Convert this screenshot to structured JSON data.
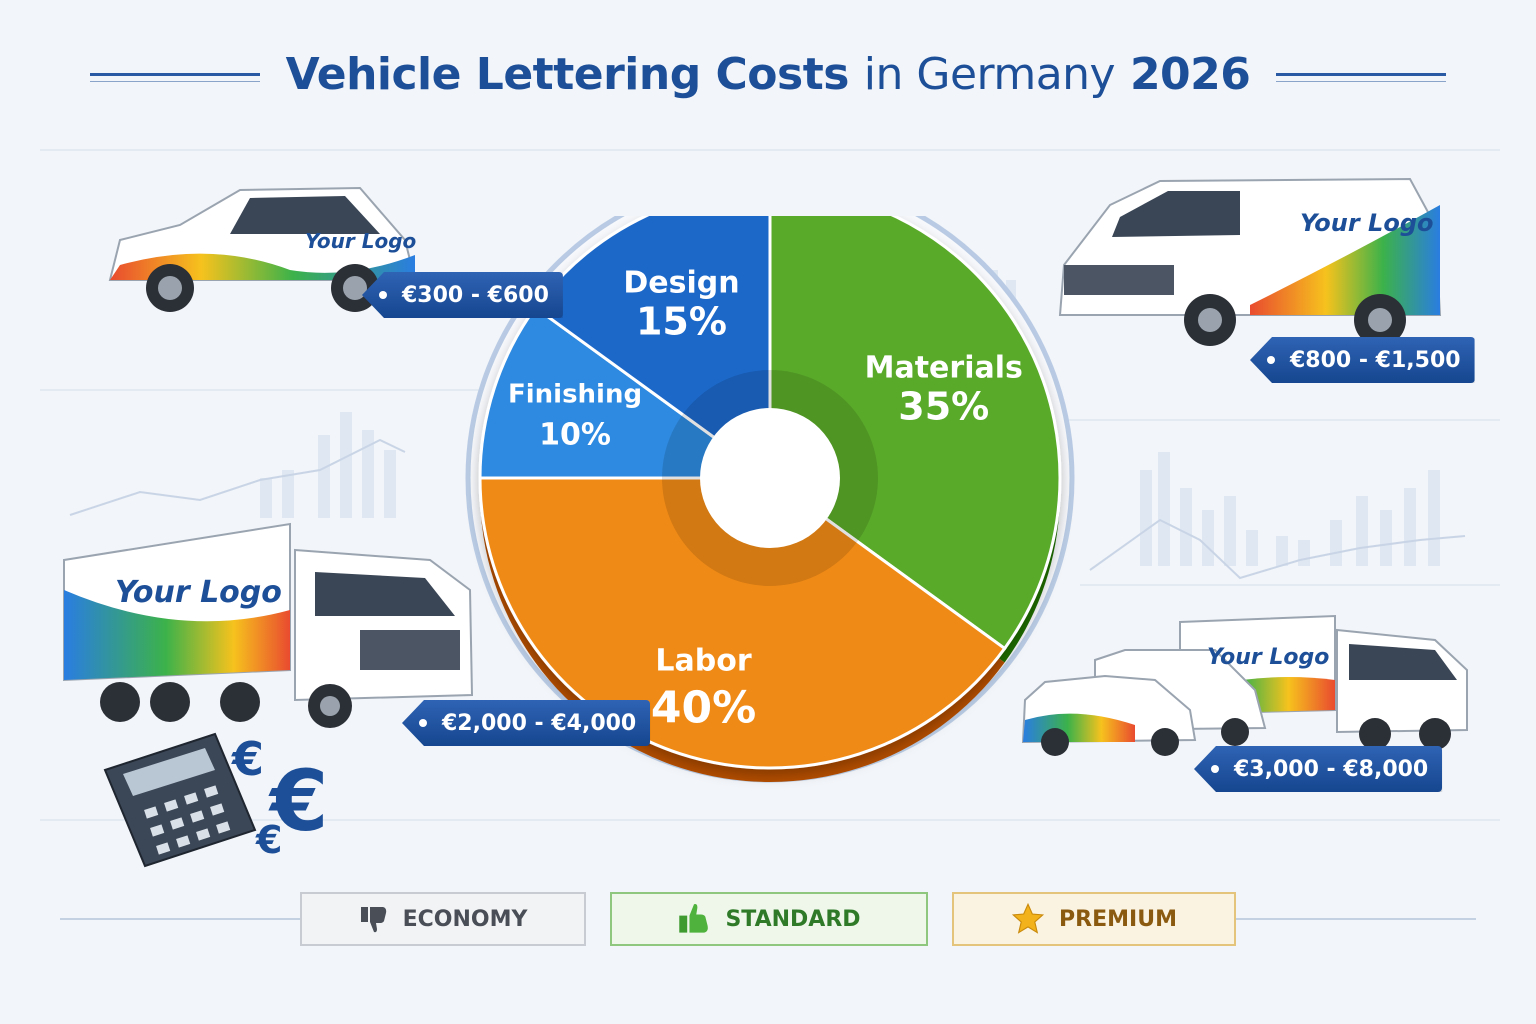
{
  "title": {
    "part1": "Vehicle Lettering Costs",
    "part2": "in Germany",
    "part3": "2026"
  },
  "chart_data": {
    "type": "pie",
    "title": "Vehicle Lettering Costs in Germany 2026",
    "slices": [
      {
        "label": "Design",
        "value": 15,
        "display": "15%",
        "color": "#1f68c9"
      },
      {
        "label": "Materials",
        "value": 35,
        "display": "35%",
        "color": "#5aaa2a"
      },
      {
        "label": "Labor",
        "value": 40,
        "display": "40%",
        "color": "#f08a14"
      },
      {
        "label": "Finishing",
        "value": 10,
        "display": "10%",
        "color": "#2f8ae0"
      }
    ]
  },
  "vehicles": [
    {
      "type": "car",
      "logo": "Your Logo",
      "price": "€300 - €600"
    },
    {
      "type": "van",
      "logo": "Your Logo",
      "price": "€800 - €1,500"
    },
    {
      "type": "truck",
      "logo": "Your Logo",
      "price": "€2,000 - €4,000"
    },
    {
      "type": "fleet",
      "logo": "Your Logo",
      "price": "€3,000 - €8,000"
    }
  ],
  "tiers": [
    {
      "label": "ECONOMY",
      "icon": "thumbs-down-icon"
    },
    {
      "label": "STANDARD",
      "icon": "thumbs-up-icon"
    },
    {
      "label": "PREMIUM",
      "icon": "star-icon"
    }
  ],
  "euro_symbol": "€",
  "colors": {
    "title": "#1d4f98",
    "tag": "#1c4f9c",
    "design": "#1f68c9",
    "materials": "#5aaa2a",
    "labor": "#f08a14",
    "finishing": "#2f8ae0"
  }
}
